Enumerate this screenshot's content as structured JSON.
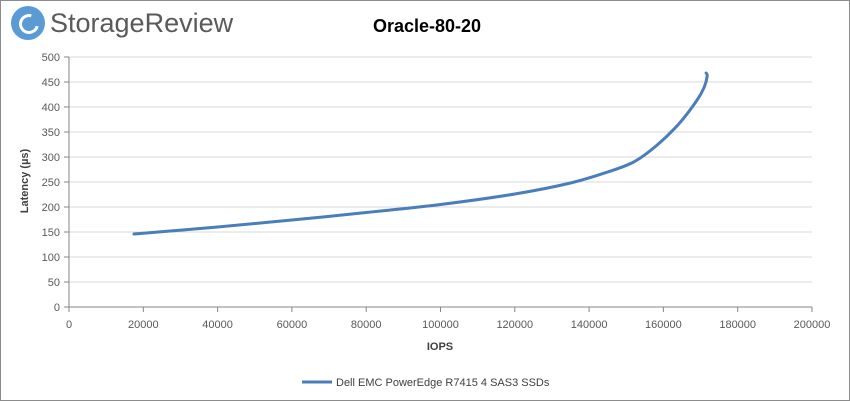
{
  "brand": {
    "logo_text": "StorageReview"
  },
  "chart_data": {
    "type": "line",
    "title": "Oracle-80-20",
    "xlabel": "IOPS",
    "ylabel": "Latency (µs)",
    "xlim": [
      0,
      200000
    ],
    "ylim": [
      0,
      500
    ],
    "x_ticks": [
      "0",
      "20000",
      "40000",
      "60000",
      "80000",
      "100000",
      "120000",
      "140000",
      "160000",
      "180000",
      "200000"
    ],
    "y_ticks": [
      "0",
      "50",
      "100",
      "150",
      "200",
      "250",
      "300",
      "350",
      "400",
      "450",
      "500"
    ],
    "grid": true,
    "legend_position": "bottom",
    "series": [
      {
        "name": "Dell EMC PowerEdge R7415 4 SAS3 SSDs",
        "color": "#4a7ebb",
        "x": [
          17500,
          40000,
          60000,
          80000,
          100000,
          120000,
          135000,
          145000,
          152000,
          158000,
          164000,
          169000,
          171000,
          171800,
          171500
        ],
        "y": [
          146,
          160,
          174,
          189,
          205,
          226,
          248,
          270,
          290,
          322,
          365,
          413,
          440,
          462,
          468
        ]
      }
    ]
  }
}
